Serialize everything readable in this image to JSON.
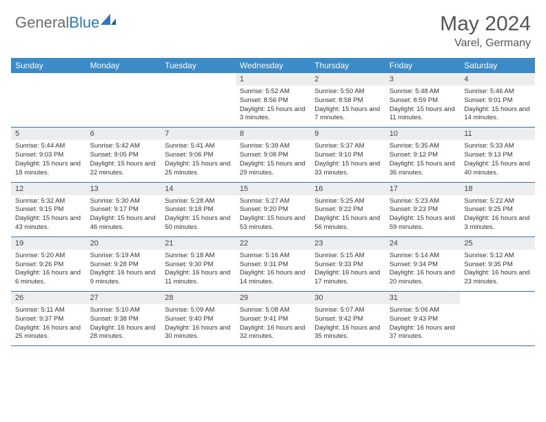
{
  "brand": {
    "name_part1": "General",
    "name_part2": "Blue"
  },
  "title": "May 2024",
  "location": "Varel, Germany",
  "colors": {
    "header_bg": "#3b8bc9",
    "header_text": "#ffffff",
    "daynum_bg": "#ebedef",
    "border": "#3b6fa0",
    "brand_gray": "#6b6b6b",
    "brand_blue": "#2a7ab9"
  },
  "day_headers": [
    "Sunday",
    "Monday",
    "Tuesday",
    "Wednesday",
    "Thursday",
    "Friday",
    "Saturday"
  ],
  "weeks": [
    [
      {
        "empty": true
      },
      {
        "empty": true
      },
      {
        "empty": true
      },
      {
        "n": "1",
        "sr": "Sunrise: 5:52 AM",
        "ss": "Sunset: 8:56 PM",
        "dl": "Daylight: 15 hours and 3 minutes."
      },
      {
        "n": "2",
        "sr": "Sunrise: 5:50 AM",
        "ss": "Sunset: 8:58 PM",
        "dl": "Daylight: 15 hours and 7 minutes."
      },
      {
        "n": "3",
        "sr": "Sunrise: 5:48 AM",
        "ss": "Sunset: 8:59 PM",
        "dl": "Daylight: 15 hours and 11 minutes."
      },
      {
        "n": "4",
        "sr": "Sunrise: 5:46 AM",
        "ss": "Sunset: 9:01 PM",
        "dl": "Daylight: 15 hours and 14 minutes."
      }
    ],
    [
      {
        "n": "5",
        "sr": "Sunrise: 5:44 AM",
        "ss": "Sunset: 9:03 PM",
        "dl": "Daylight: 15 hours and 18 minutes."
      },
      {
        "n": "6",
        "sr": "Sunrise: 5:42 AM",
        "ss": "Sunset: 9:05 PM",
        "dl": "Daylight: 15 hours and 22 minutes."
      },
      {
        "n": "7",
        "sr": "Sunrise: 5:41 AM",
        "ss": "Sunset: 9:06 PM",
        "dl": "Daylight: 15 hours and 25 minutes."
      },
      {
        "n": "8",
        "sr": "Sunrise: 5:39 AM",
        "ss": "Sunset: 9:08 PM",
        "dl": "Daylight: 15 hours and 29 minutes."
      },
      {
        "n": "9",
        "sr": "Sunrise: 5:37 AM",
        "ss": "Sunset: 9:10 PM",
        "dl": "Daylight: 15 hours and 33 minutes."
      },
      {
        "n": "10",
        "sr": "Sunrise: 5:35 AM",
        "ss": "Sunset: 9:12 PM",
        "dl": "Daylight: 15 hours and 36 minutes."
      },
      {
        "n": "11",
        "sr": "Sunrise: 5:33 AM",
        "ss": "Sunset: 9:13 PM",
        "dl": "Daylight: 15 hours and 40 minutes."
      }
    ],
    [
      {
        "n": "12",
        "sr": "Sunrise: 5:32 AM",
        "ss": "Sunset: 9:15 PM",
        "dl": "Daylight: 15 hours and 43 minutes."
      },
      {
        "n": "13",
        "sr": "Sunrise: 5:30 AM",
        "ss": "Sunset: 9:17 PM",
        "dl": "Daylight: 15 hours and 46 minutes."
      },
      {
        "n": "14",
        "sr": "Sunrise: 5:28 AM",
        "ss": "Sunset: 9:18 PM",
        "dl": "Daylight: 15 hours and 50 minutes."
      },
      {
        "n": "15",
        "sr": "Sunrise: 5:27 AM",
        "ss": "Sunset: 9:20 PM",
        "dl": "Daylight: 15 hours and 53 minutes."
      },
      {
        "n": "16",
        "sr": "Sunrise: 5:25 AM",
        "ss": "Sunset: 9:22 PM",
        "dl": "Daylight: 15 hours and 56 minutes."
      },
      {
        "n": "17",
        "sr": "Sunrise: 5:23 AM",
        "ss": "Sunset: 9:23 PM",
        "dl": "Daylight: 15 hours and 59 minutes."
      },
      {
        "n": "18",
        "sr": "Sunrise: 5:22 AM",
        "ss": "Sunset: 9:25 PM",
        "dl": "Daylight: 16 hours and 3 minutes."
      }
    ],
    [
      {
        "n": "19",
        "sr": "Sunrise: 5:20 AM",
        "ss": "Sunset: 9:26 PM",
        "dl": "Daylight: 16 hours and 6 minutes."
      },
      {
        "n": "20",
        "sr": "Sunrise: 5:19 AM",
        "ss": "Sunset: 9:28 PM",
        "dl": "Daylight: 16 hours and 9 minutes."
      },
      {
        "n": "21",
        "sr": "Sunrise: 5:18 AM",
        "ss": "Sunset: 9:30 PM",
        "dl": "Daylight: 16 hours and 11 minutes."
      },
      {
        "n": "22",
        "sr": "Sunrise: 5:16 AM",
        "ss": "Sunset: 9:31 PM",
        "dl": "Daylight: 16 hours and 14 minutes."
      },
      {
        "n": "23",
        "sr": "Sunrise: 5:15 AM",
        "ss": "Sunset: 9:33 PM",
        "dl": "Daylight: 16 hours and 17 minutes."
      },
      {
        "n": "24",
        "sr": "Sunrise: 5:14 AM",
        "ss": "Sunset: 9:34 PM",
        "dl": "Daylight: 16 hours and 20 minutes."
      },
      {
        "n": "25",
        "sr": "Sunrise: 5:12 AM",
        "ss": "Sunset: 9:35 PM",
        "dl": "Daylight: 16 hours and 23 minutes."
      }
    ],
    [
      {
        "n": "26",
        "sr": "Sunrise: 5:11 AM",
        "ss": "Sunset: 9:37 PM",
        "dl": "Daylight: 16 hours and 25 minutes."
      },
      {
        "n": "27",
        "sr": "Sunrise: 5:10 AM",
        "ss": "Sunset: 9:38 PM",
        "dl": "Daylight: 16 hours and 28 minutes."
      },
      {
        "n": "28",
        "sr": "Sunrise: 5:09 AM",
        "ss": "Sunset: 9:40 PM",
        "dl": "Daylight: 16 hours and 30 minutes."
      },
      {
        "n": "29",
        "sr": "Sunrise: 5:08 AM",
        "ss": "Sunset: 9:41 PM",
        "dl": "Daylight: 16 hours and 32 minutes."
      },
      {
        "n": "30",
        "sr": "Sunrise: 5:07 AM",
        "ss": "Sunset: 9:42 PM",
        "dl": "Daylight: 16 hours and 35 minutes."
      },
      {
        "n": "31",
        "sr": "Sunrise: 5:06 AM",
        "ss": "Sunset: 9:43 PM",
        "dl": "Daylight: 16 hours and 37 minutes."
      },
      {
        "empty": true
      }
    ]
  ]
}
